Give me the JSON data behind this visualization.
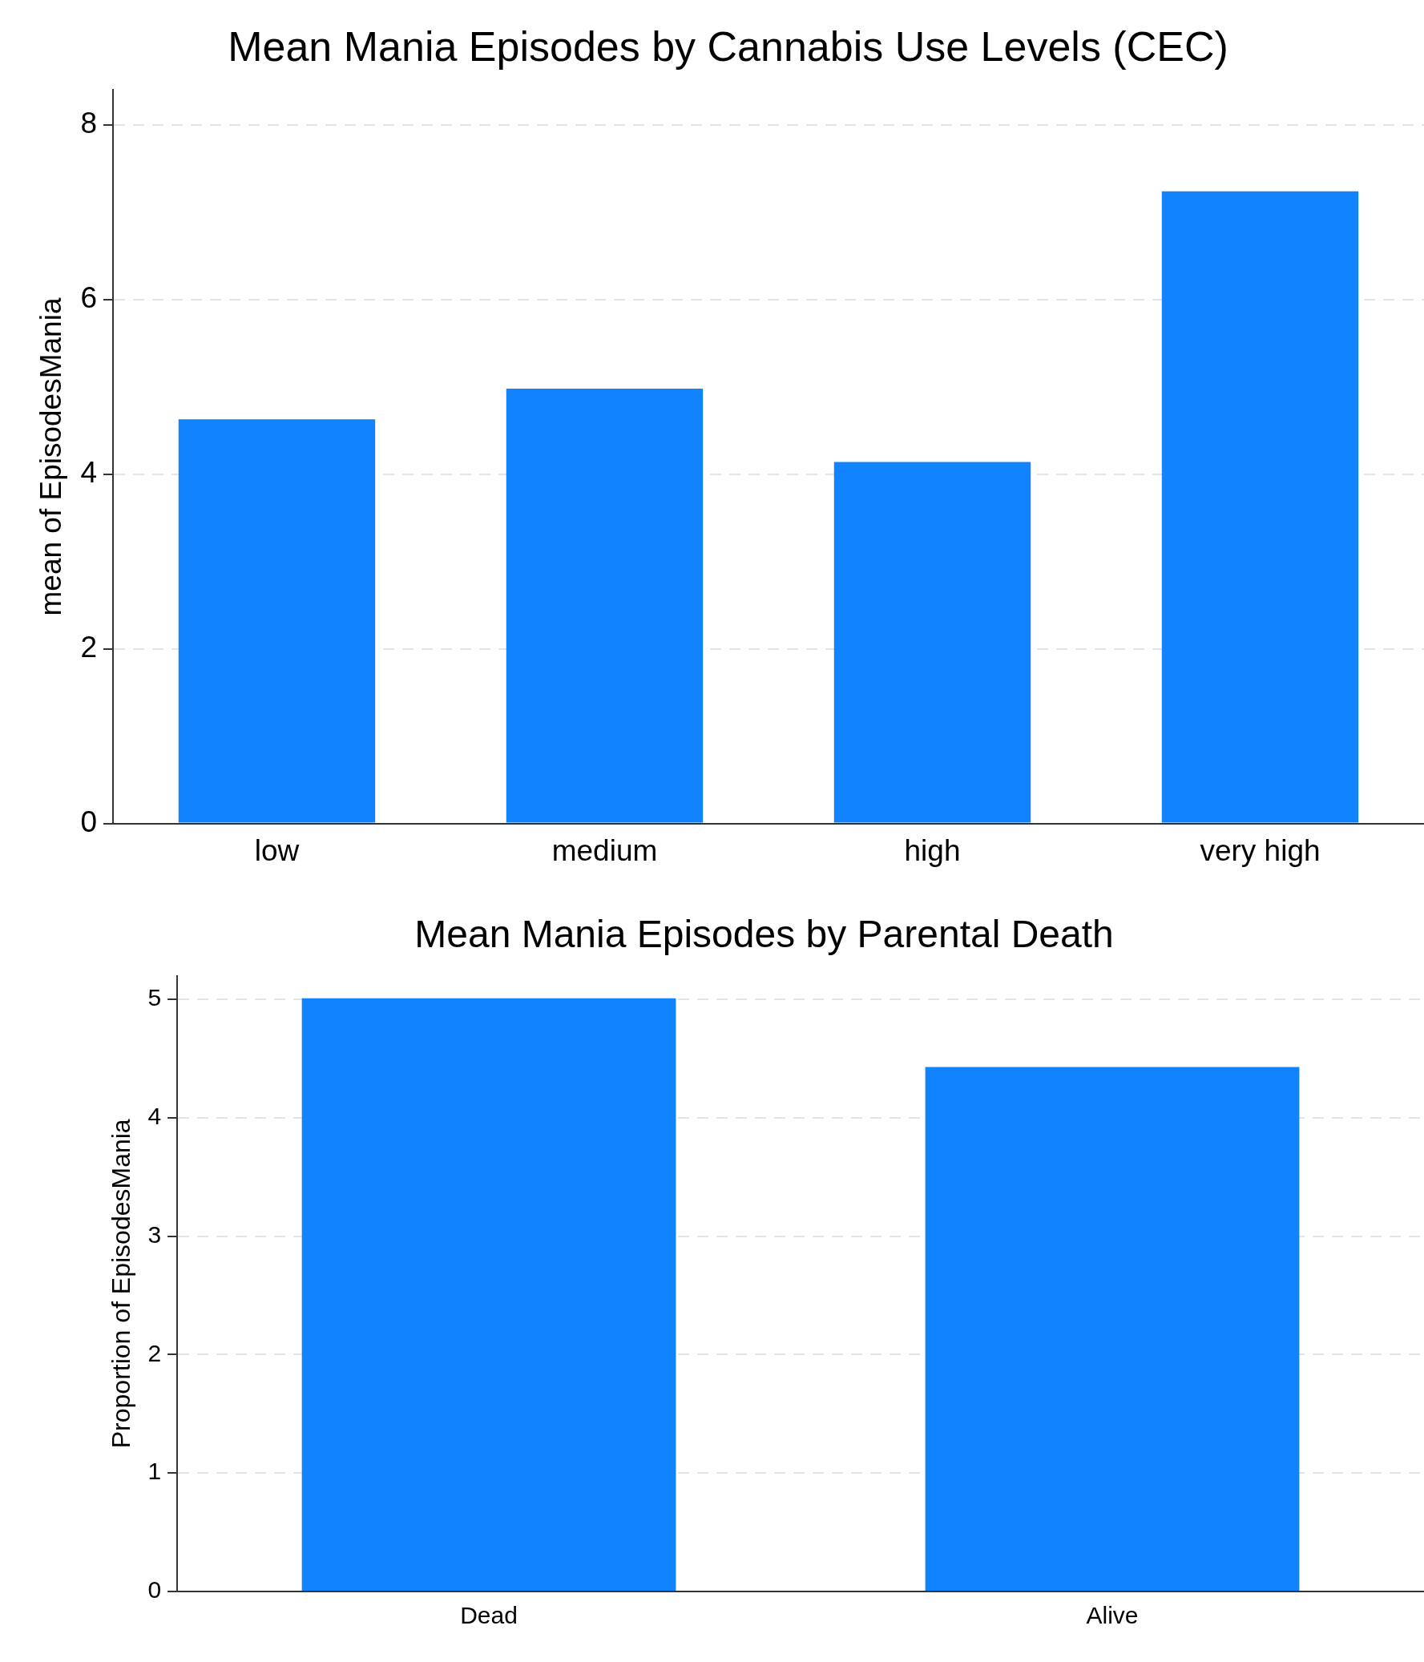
{
  "chart_data": [
    {
      "type": "bar",
      "title": "Mean Mania Episodes by Cannabis Use Levels (CEC)",
      "ylabel": "mean of EpisodesMania",
      "categories": [
        "low",
        "medium",
        "high",
        "very high"
      ],
      "values": [
        4.63,
        4.98,
        4.14,
        7.24
      ],
      "color": "#1283ff",
      "ylim": [
        0,
        8.4
      ],
      "yticks": [
        0,
        2,
        4,
        6,
        8
      ],
      "grid": "y"
    },
    {
      "type": "bar",
      "title": "Mean Mania Episodes by Parental Death",
      "ylabel": "Proportion of EpisodesMania",
      "categories": [
        "Dead",
        "Alive"
      ],
      "values": [
        5.01,
        4.43
      ],
      "color": "#1283ff",
      "ylim": [
        0,
        5.2
      ],
      "yticks": [
        0,
        1,
        2,
        3,
        4,
        5
      ],
      "grid": "y"
    }
  ]
}
